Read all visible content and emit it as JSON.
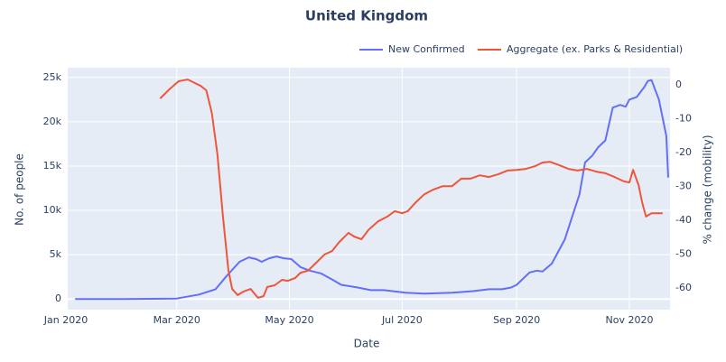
{
  "chart_data": {
    "type": "line",
    "title": "United Kingdom",
    "xlabel": "Date",
    "ylabel": "No. of people",
    "y2label": "% change (mobility)",
    "xlim": [
      "2020-01-02",
      "2020-11-23"
    ],
    "xticks": [
      {
        "value": "2020-01-01",
        "label": "Jan 2020"
      },
      {
        "value": "2020-03-01",
        "label": "Mar 2020"
      },
      {
        "value": "2020-05-01",
        "label": "May 2020"
      },
      {
        "value": "2020-07-01",
        "label": "Jul 2020"
      },
      {
        "value": "2020-09-01",
        "label": "Sep 2020"
      },
      {
        "value": "2020-11-01",
        "label": "Nov 2020"
      }
    ],
    "ylim": [
      -1200,
      26100
    ],
    "yticks": [
      0,
      {
        "value": 5000,
        "label": "5k"
      },
      {
        "value": 10000,
        "label": "10k"
      },
      {
        "value": 15000,
        "label": "15k"
      },
      {
        "value": 20000,
        "label": "20k"
      },
      {
        "value": 25000,
        "label": "25k"
      }
    ],
    "y2lim": [
      -66.4,
      5.1
    ],
    "y2ticks": [
      0,
      -10,
      -20,
      -30,
      -40,
      -50,
      -60
    ],
    "grid": true,
    "legend": "top-right",
    "series": [
      {
        "name": "New Confirmed",
        "color": "#636efa",
        "axis": "y",
        "x": [
          "2020-01-06",
          "2020-02-01",
          "2020-03-01",
          "2020-03-13",
          "2020-03-22",
          "2020-03-28",
          "2020-04-04",
          "2020-04-09",
          "2020-04-13",
          "2020-04-16",
          "2020-04-20",
          "2020-04-24",
          "2020-04-28",
          "2020-05-02",
          "2020-05-07",
          "2020-05-12",
          "2020-05-18",
          "2020-05-25",
          "2020-05-29",
          "2020-06-07",
          "2020-06-14",
          "2020-06-21",
          "2020-07-03",
          "2020-07-13",
          "2020-07-28",
          "2020-08-09",
          "2020-08-17",
          "2020-08-24",
          "2020-08-29",
          "2020-09-01",
          "2020-09-08",
          "2020-09-12",
          "2020-09-15",
          "2020-09-20",
          "2020-09-27",
          "2020-10-05",
          "2020-10-08",
          "2020-10-12",
          "2020-10-15",
          "2020-10-19",
          "2020-10-23",
          "2020-10-27",
          "2020-10-30",
          "2020-11-01",
          "2020-11-05",
          "2020-11-09",
          "2020-11-11",
          "2020-11-13",
          "2020-11-17",
          "2020-11-21",
          "2020-11-22"
        ],
        "values": [
          0,
          0,
          50,
          500,
          1100,
          2600,
          4200,
          4700,
          4500,
          4200,
          4600,
          4800,
          4600,
          4500,
          3600,
          3200,
          2900,
          2100,
          1600,
          1300,
          1000,
          1000,
          700,
          600,
          700,
          900,
          1100,
          1100,
          1300,
          1600,
          3000,
          3200,
          3100,
          4000,
          6700,
          11800,
          15400,
          16200,
          17100,
          17900,
          21600,
          21900,
          21700,
          22500,
          22800,
          23900,
          24600,
          24700,
          22500,
          18400,
          13700
        ]
      },
      {
        "name": "Aggregate (ex. Parks & Residential)",
        "color": "#ef553b",
        "axis": "y2",
        "x": [
          "2020-02-21",
          "2020-02-24",
          "2020-02-26",
          "2020-03-02",
          "2020-03-04",
          "2020-03-07",
          "2020-03-10",
          "2020-03-14",
          "2020-03-17",
          "2020-03-20",
          "2020-03-23",
          "2020-03-26",
          "2020-03-29",
          "2020-03-31",
          "2020-04-03",
          "2020-04-06",
          "2020-04-10",
          "2020-04-12",
          "2020-04-14",
          "2020-04-17",
          "2020-04-19",
          "2020-04-23",
          "2020-04-27",
          "2020-04-30",
          "2020-05-04",
          "2020-05-07",
          "2020-05-11",
          "2020-05-15",
          "2020-05-20",
          "2020-05-24",
          "2020-05-28",
          "2020-06-02",
          "2020-06-05",
          "2020-06-09",
          "2020-06-13",
          "2020-06-18",
          "2020-06-23",
          "2020-06-27",
          "2020-07-01",
          "2020-07-04",
          "2020-07-08",
          "2020-07-13",
          "2020-07-18",
          "2020-07-23",
          "2020-07-28",
          "2020-08-02",
          "2020-08-07",
          "2020-08-12",
          "2020-08-17",
          "2020-08-22",
          "2020-08-27",
          "2020-09-01",
          "2020-09-06",
          "2020-09-11",
          "2020-09-15",
          "2020-09-19",
          "2020-09-24",
          "2020-09-29",
          "2020-10-04",
          "2020-10-09",
          "2020-10-14",
          "2020-10-19",
          "2020-10-24",
          "2020-10-29",
          "2020-11-01",
          "2020-11-03",
          "2020-11-06",
          "2020-11-08",
          "2020-11-10",
          "2020-11-13",
          "2020-11-17",
          "2020-11-19"
        ],
        "values": [
          -4.0,
          -2.4,
          -1.3,
          1.1,
          1.3,
          1.6,
          0.8,
          -0.3,
          -1.6,
          -8.3,
          -20.3,
          -38.9,
          -54.9,
          -60.3,
          -62.1,
          -61.1,
          -60.3,
          -61.6,
          -62.9,
          -62.4,
          -59.7,
          -59.2,
          -57.6,
          -57.9,
          -57.1,
          -55.5,
          -54.9,
          -52.8,
          -50.1,
          -49.1,
          -46.4,
          -43.7,
          -44.8,
          -45.6,
          -42.7,
          -40.3,
          -38.9,
          -37.3,
          -37.9,
          -37.3,
          -34.9,
          -32.3,
          -30.9,
          -29.9,
          -29.9,
          -27.7,
          -27.7,
          -26.7,
          -27.2,
          -26.4,
          -25.3,
          -25.1,
          -24.8,
          -24.0,
          -22.9,
          -22.7,
          -23.7,
          -24.8,
          -25.3,
          -24.8,
          -25.6,
          -26.1,
          -27.2,
          -28.5,
          -28.8,
          -25.1,
          -29.6,
          -34.9,
          -38.9,
          -37.9,
          -37.9,
          -37.9
        ]
      }
    ]
  }
}
